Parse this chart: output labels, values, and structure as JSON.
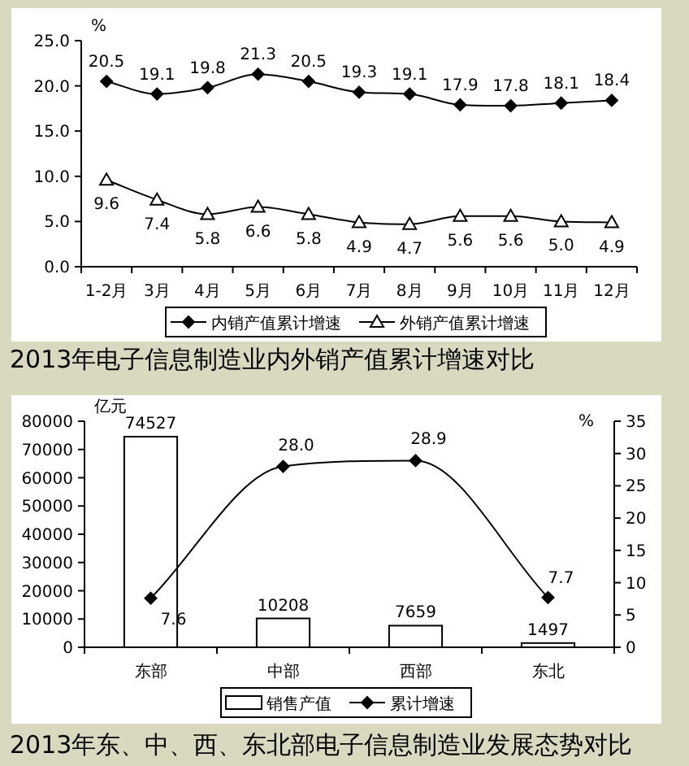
{
  "chart_data": [
    {
      "type": "line",
      "title": "2013年电子信息制造业内外销产值累计增速对比",
      "ylabel": "%",
      "categories": [
        "1-2月",
        "3月",
        "4月",
        "5月",
        "6月",
        "7月",
        "8月",
        "9月",
        "10月",
        "11月",
        "12月"
      ],
      "series": [
        {
          "name": "内销产值累计增速",
          "color": "#000000",
          "marker": "diamond",
          "values": [
            20.5,
            19.1,
            19.8,
            21.3,
            20.5,
            19.3,
            19.1,
            17.9,
            17.8,
            18.1,
            18.4
          ]
        },
        {
          "name": "外销产值累计增速",
          "color": "#000000",
          "marker": "triangle",
          "values": [
            9.6,
            7.4,
            5.8,
            6.6,
            5.8,
            4.9,
            4.7,
            5.6,
            5.6,
            5.0,
            4.9
          ],
          "value_labels": [
            "9.6",
            "7.4",
            "5.8",
            "6.6",
            "5.8",
            "4.9",
            "4.7",
            "5.6",
            "5.6",
            "5.0",
            "4.9"
          ]
        }
      ],
      "ylim": [
        0,
        25
      ],
      "yticks": [
        {
          "value": 0,
          "label": "0.0"
        },
        {
          "value": 5,
          "label": "5.0"
        },
        {
          "value": 10,
          "label": "10.0"
        },
        {
          "value": 15,
          "label": "15.0"
        },
        {
          "value": 20,
          "label": "20.0"
        },
        {
          "value": 25,
          "label": "25.0"
        }
      ],
      "data_labels": true,
      "legend": "bottom",
      "grid": false
    },
    {
      "type": "bar",
      "title": "2013年东、中、西、东北部电子信息制造业发展态势对比",
      "ylabel": "亿元",
      "y2label": "%",
      "categories": [
        "东部",
        "中部",
        "西部",
        "东北"
      ],
      "series": [
        {
          "name": "销售产值",
          "color": "#ffffff",
          "values": [
            74527,
            10208,
            7659,
            1497
          ]
        },
        {
          "name": "累计增速",
          "type": "line",
          "axis": "y2",
          "color": "#000000",
          "marker": "diamond",
          "values": [
            7.6,
            28.0,
            28.9,
            7.7
          ],
          "value_labels": [
            "7.6",
            "28.0",
            "28.9",
            "7.7"
          ]
        }
      ],
      "ylim": [
        0,
        80000
      ],
      "yticks": [
        0,
        10000,
        20000,
        30000,
        40000,
        50000,
        60000,
        70000,
        80000
      ],
      "y2lim": [
        0,
        35
      ],
      "y2ticks": [
        0,
        5,
        10,
        15,
        20,
        25,
        30,
        35
      ],
      "data_labels": true,
      "legend": "bottom",
      "grid": false
    }
  ]
}
